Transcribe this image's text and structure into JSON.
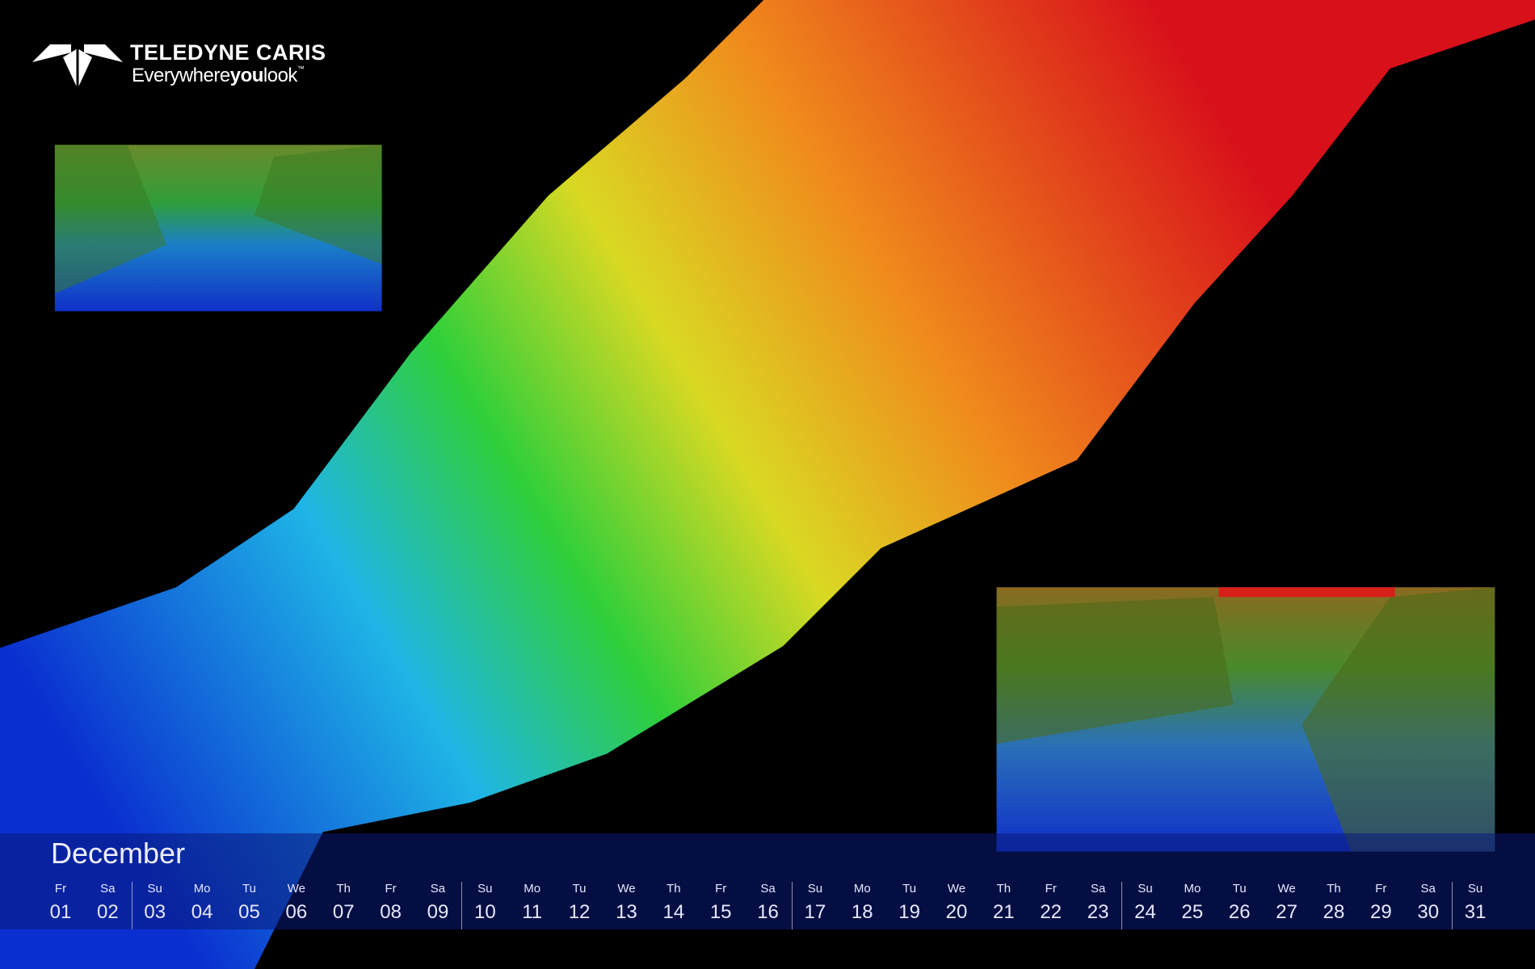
{
  "logo": {
    "name": "TELEDYNE CARIS",
    "tagline": {
      "pre": "Everywhere",
      "bold": "you",
      "post": "look",
      "mark": "™"
    }
  },
  "calendar": {
    "month": "December",
    "days": [
      {
        "weekday": "Fr",
        "day": "01"
      },
      {
        "weekday": "Sa",
        "day": "02"
      },
      {
        "weekday": "Su",
        "day": "03"
      },
      {
        "weekday": "Mo",
        "day": "04"
      },
      {
        "weekday": "Tu",
        "day": "05"
      },
      {
        "weekday": "We",
        "day": "06"
      },
      {
        "weekday": "Th",
        "day": "07"
      },
      {
        "weekday": "Fr",
        "day": "08"
      },
      {
        "weekday": "Sa",
        "day": "09"
      },
      {
        "weekday": "Su",
        "day": "10"
      },
      {
        "weekday": "Mo",
        "day": "11"
      },
      {
        "weekday": "Tu",
        "day": "12"
      },
      {
        "weekday": "We",
        "day": "13"
      },
      {
        "weekday": "Th",
        "day": "14"
      },
      {
        "weekday": "Fr",
        "day": "15"
      },
      {
        "weekday": "Sa",
        "day": "16"
      },
      {
        "weekday": "Su",
        "day": "17"
      },
      {
        "weekday": "Mo",
        "day": "18"
      },
      {
        "weekday": "Tu",
        "day": "19"
      },
      {
        "weekday": "We",
        "day": "20"
      },
      {
        "weekday": "Th",
        "day": "21"
      },
      {
        "weekday": "Fr",
        "day": "22"
      },
      {
        "weekday": "Sa",
        "day": "23"
      },
      {
        "weekday": "Su",
        "day": "24"
      },
      {
        "weekday": "Mo",
        "day": "25"
      },
      {
        "weekday": "Tu",
        "day": "26"
      },
      {
        "weekday": "We",
        "day": "27"
      },
      {
        "weekday": "Th",
        "day": "28"
      },
      {
        "weekday": "Fr",
        "day": "29"
      },
      {
        "weekday": "Sa",
        "day": "30"
      },
      {
        "weekday": "Su",
        "day": "31"
      }
    ]
  }
}
